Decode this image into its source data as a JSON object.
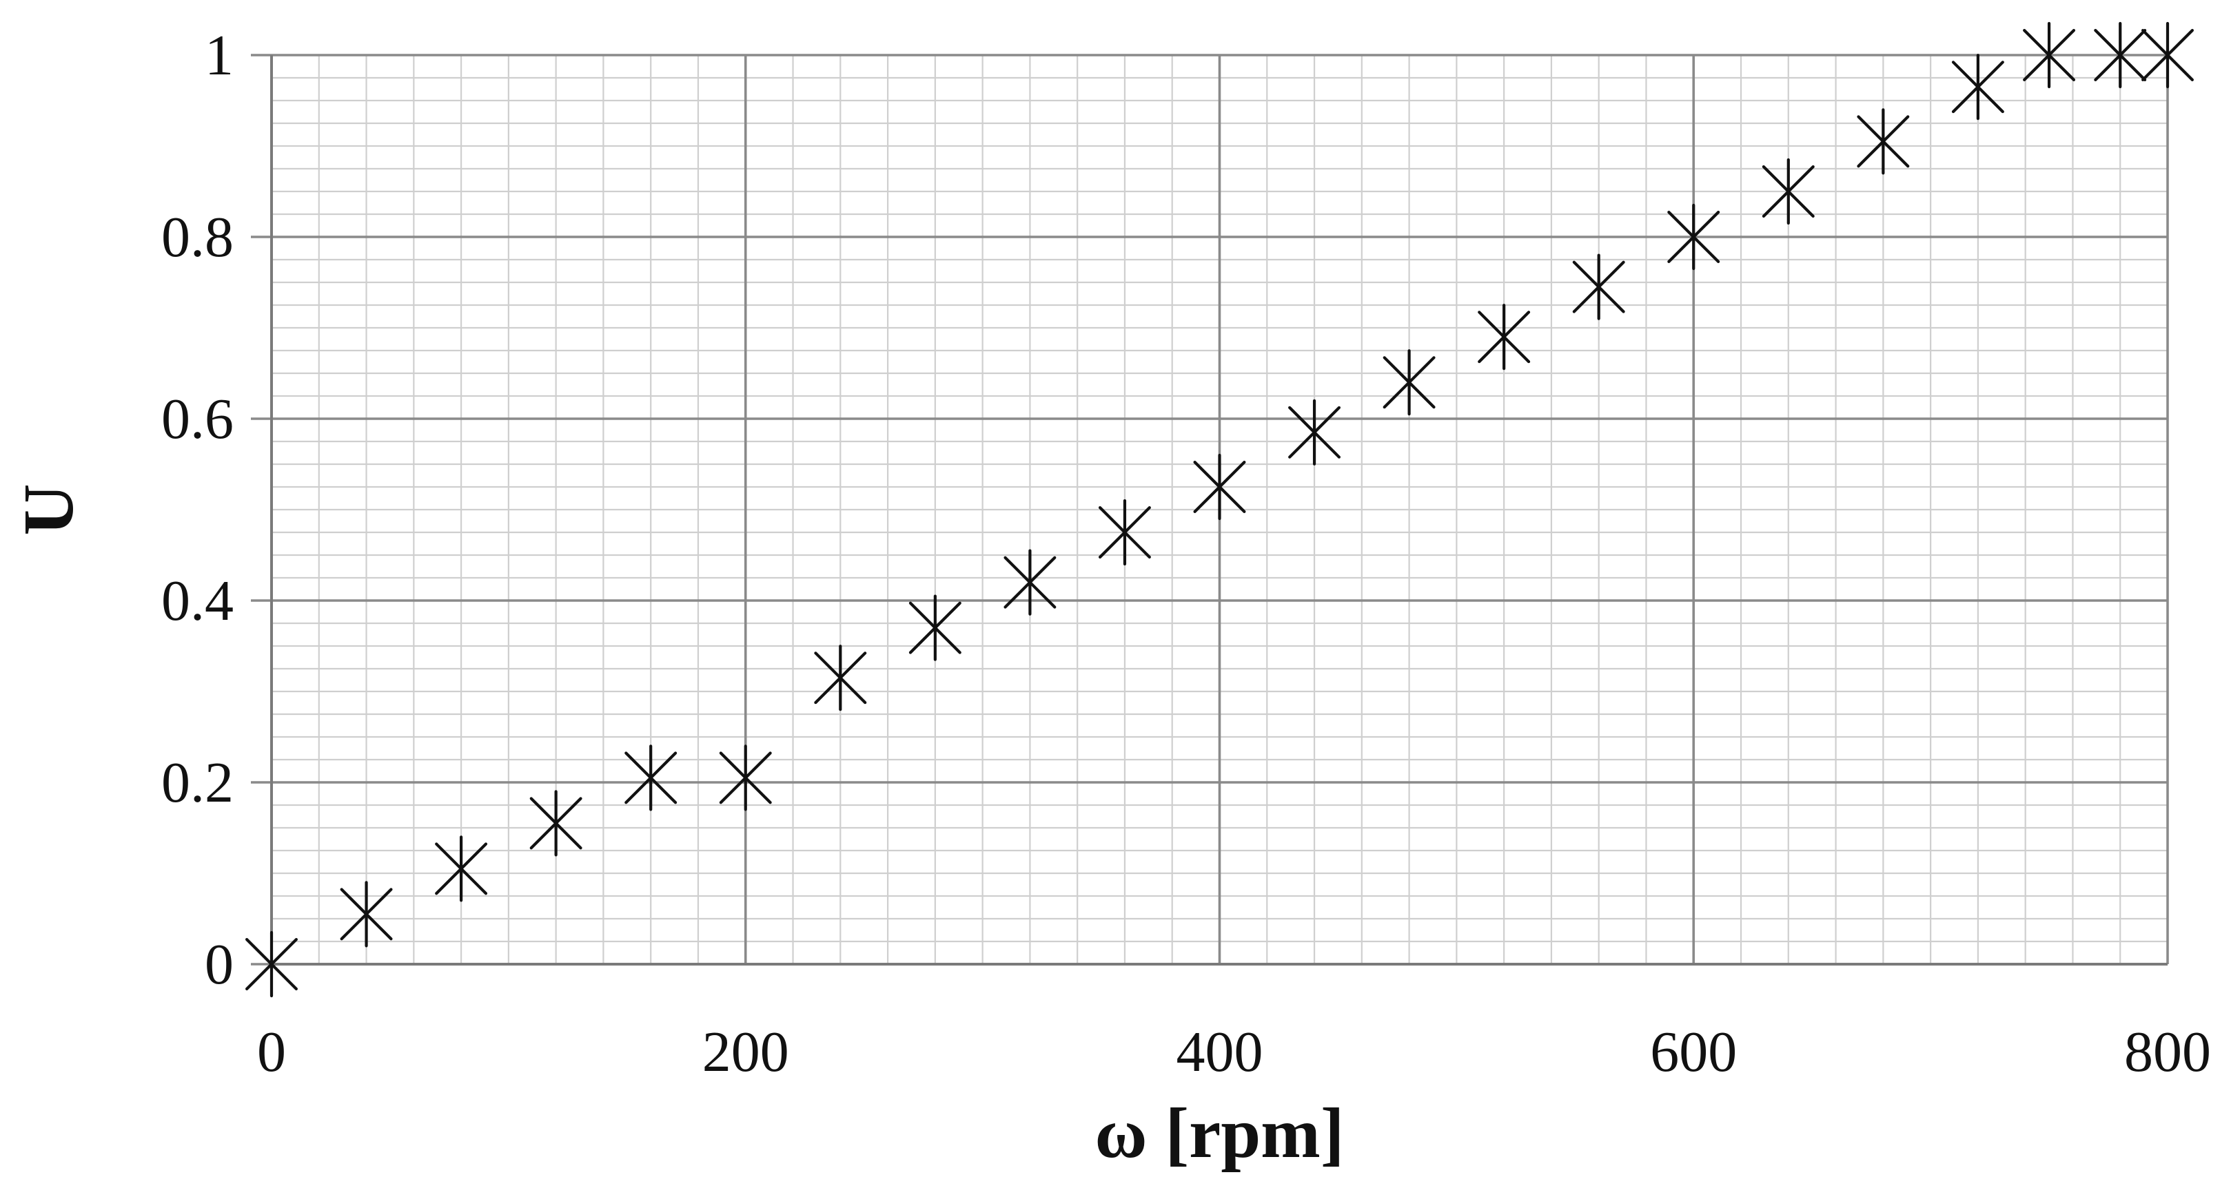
{
  "chart_data": {
    "type": "scatter",
    "title": "",
    "xlabel": "ω [rpm]",
    "ylabel": "U",
    "xlim": [
      0,
      800
    ],
    "ylim": [
      0,
      1
    ],
    "x_ticks": [
      0,
      200,
      400,
      600,
      800
    ],
    "y_ticks": [
      0,
      0.2,
      0.4,
      0.6,
      0.8,
      1
    ],
    "x_tick_labels": [
      "0",
      "200",
      "400",
      "600",
      "800"
    ],
    "y_tick_labels": [
      "0",
      "0.2",
      "0.4",
      "0.6",
      "0.8",
      "1"
    ],
    "x_minor_step": 20,
    "y_minor_step": 0.025,
    "grid": true,
    "marker": "asterisk",
    "marker_color": "#111111",
    "series": [
      {
        "x": [
          0,
          40,
          80,
          120,
          160,
          200,
          240,
          280,
          320,
          360,
          400,
          440,
          480,
          520,
          560,
          600,
          640,
          680,
          720,
          750,
          780,
          800
        ],
        "y": [
          0.0,
          0.055,
          0.105,
          0.155,
          0.205,
          0.205,
          0.315,
          0.37,
          0.42,
          0.475,
          0.525,
          0.585,
          0.64,
          0.69,
          0.745,
          0.8,
          0.85,
          0.905,
          0.965,
          1.0,
          1.0,
          1.0
        ]
      }
    ]
  }
}
